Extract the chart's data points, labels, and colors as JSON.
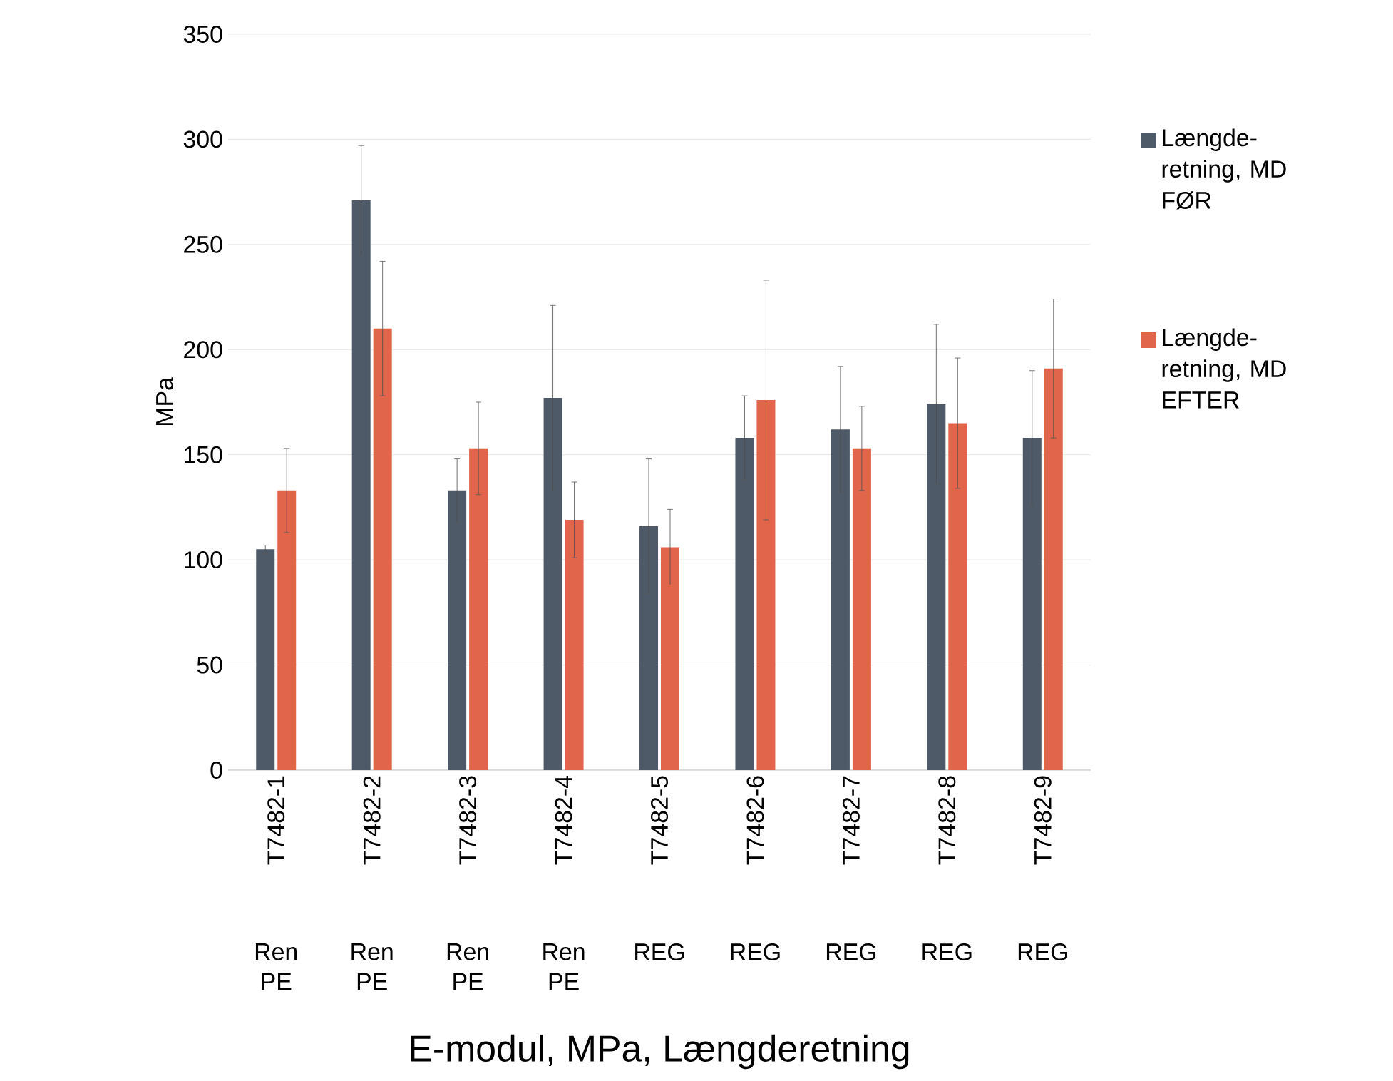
{
  "chart_data": {
    "type": "bar",
    "xlabel": "E-modul, MPa, Længderetning",
    "ylabel": "MPa",
    "categories": [
      "T7482-1",
      "T7482-2",
      "T7482-3",
      "T7482-4",
      "T7482-5",
      "T7482-6",
      "T7482-7",
      "T7482-8",
      "T7482-9"
    ],
    "annotations": [
      "Ren PE",
      "Ren PE",
      "Ren PE",
      "Ren PE",
      "REG",
      "REG",
      "REG",
      "REG",
      "REG"
    ],
    "series": [
      {
        "name": "Længde-retning, MD FØR",
        "color": "#4e5a68",
        "values": [
          105,
          271,
          133,
          177,
          116,
          158,
          162,
          174,
          158
        ],
        "errors": [
          2,
          26,
          15,
          44,
          32,
          20,
          30,
          38,
          32
        ]
      },
      {
        "name": "Længde-retning, MD EFTER",
        "color": "#e0654a",
        "values": [
          133,
          210,
          153,
          119,
          106,
          176,
          153,
          165,
          191
        ],
        "errors": [
          20,
          32,
          22,
          18,
          18,
          57,
          20,
          31,
          33
        ]
      }
    ],
    "ylim": [
      0,
      350
    ],
    "yticks": [
      0,
      50,
      100,
      150,
      200,
      250,
      300,
      350
    ],
    "grid": "y",
    "legend": "right"
  }
}
